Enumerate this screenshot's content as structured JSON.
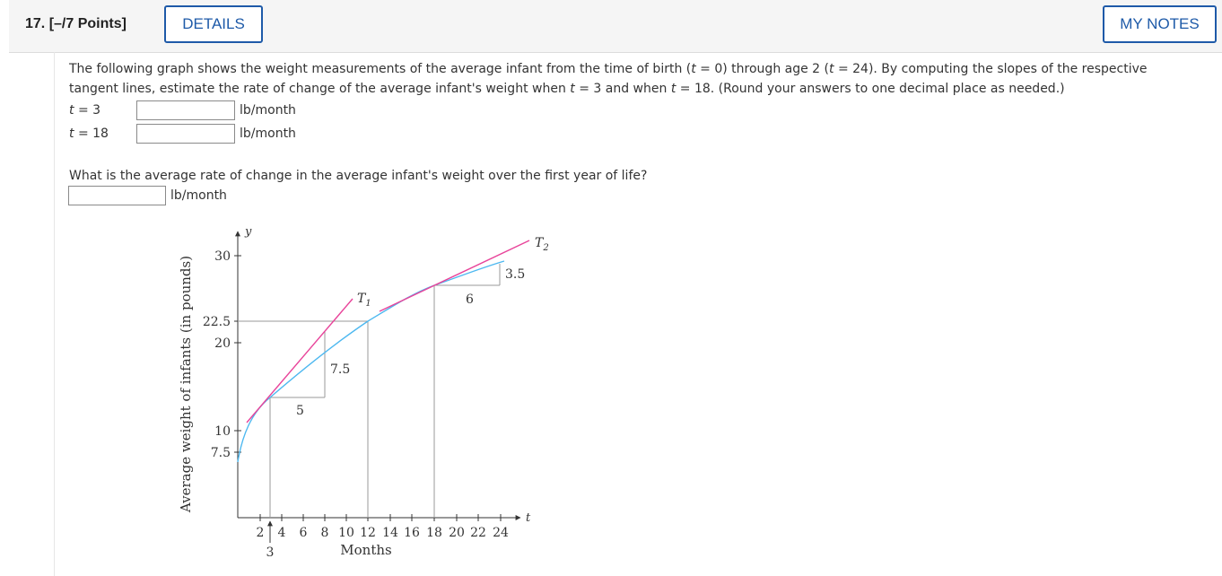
{
  "header": {
    "question_label": "17. [–/7 Points]",
    "details_label": "DETAILS",
    "notes_label": "MY NOTES"
  },
  "problem": {
    "line1": "The following graph shows the weight measurements of the average infant from the time of birth (",
    "t_var": "t",
    "eq0": " = 0) through age 2 (",
    "eq24": " = 24). By computing the slopes of the respective",
    "line2a": "tangent lines, estimate the rate of change of the average infant's weight when ",
    "eq3": " = 3 and when ",
    "eq18": " = 18. (Round your answers to one decimal place as needed.)",
    "answers": [
      {
        "label_var": "t",
        "label_rest": " = 3",
        "value": "",
        "unit": "lb/month"
      },
      {
        "label_var": "t",
        "label_rest": " = 18",
        "value": "",
        "unit": "lb/month"
      }
    ],
    "question2": "What is the average rate of change in the average infant's weight over the first year of life?",
    "answer3": {
      "value": "",
      "unit": "lb/month"
    }
  },
  "chart_data": {
    "type": "line",
    "ylabel": "Average weight of infants (in pounds)",
    "xlabel": "Months",
    "x_axis_var": "t",
    "y_axis_var": "y",
    "x_ticks": [
      "2",
      "4",
      "6",
      "8",
      "10",
      "12",
      "14",
      "16",
      "18",
      "20",
      "22",
      "24"
    ],
    "x_extra_tick": "3",
    "y_ticks": [
      "7.5",
      "10",
      "20",
      "22.5",
      "30"
    ],
    "series": [
      {
        "x": [
          0,
          1,
          3,
          6,
          9,
          12,
          15,
          18,
          21,
          24
        ],
        "y": [
          7.5,
          10,
          14.5,
          18.5,
          21,
          22.5,
          24.5,
          26,
          27.2,
          28
        ]
      }
    ],
    "tangents": [
      {
        "name": "T1",
        "label": "T",
        "sub": "1",
        "run": "5",
        "rise": "7.5"
      },
      {
        "name": "T2",
        "label": "T",
        "sub": "2",
        "run": "6",
        "rise": "3.5"
      }
    ],
    "colors": {
      "curve": "#4db8f0",
      "tangent": "#e8449a",
      "axis": "#333333",
      "guide": "#999999"
    }
  }
}
